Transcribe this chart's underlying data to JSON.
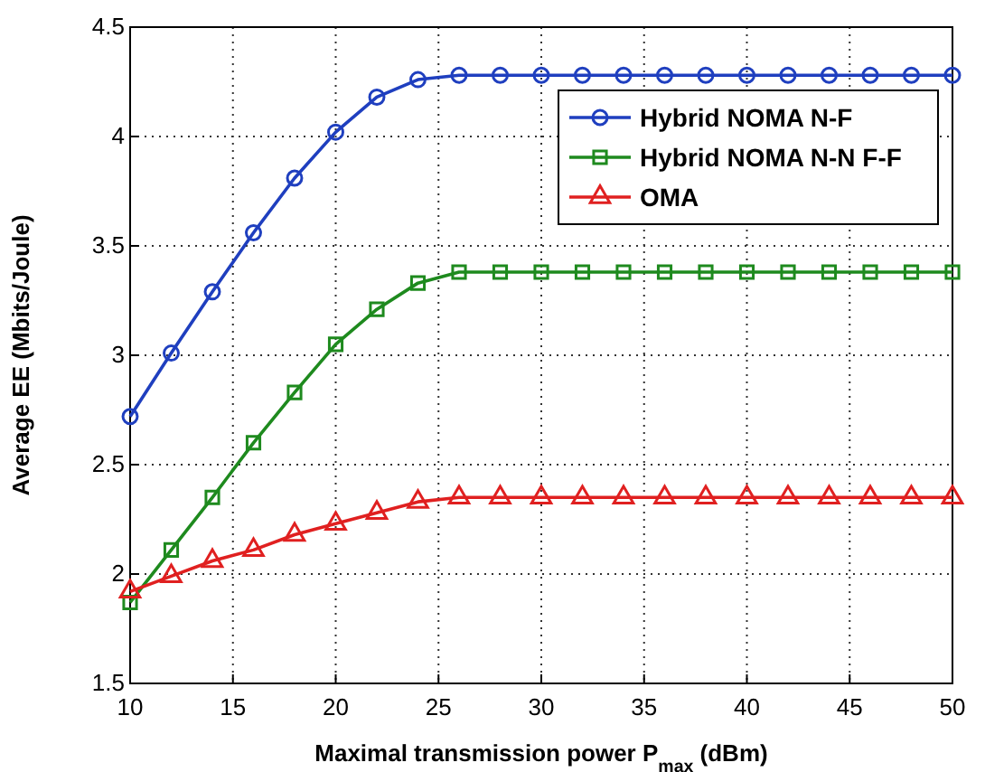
{
  "chart_data": {
    "type": "line",
    "xlabel": "Maximal transmission power P$_{max}$ (dBm)",
    "ylabel": "Average EE (Mbits/Joule)",
    "x": [
      10,
      12,
      14,
      16,
      18,
      20,
      22,
      24,
      26,
      28,
      30,
      32,
      34,
      36,
      38,
      40,
      42,
      44,
      46,
      48,
      50
    ],
    "series": [
      {
        "name": "Hybrid NOMA N-F",
        "color": "#1f3fbf",
        "marker": "circle",
        "values": [
          2.72,
          3.01,
          3.29,
          3.56,
          3.81,
          4.02,
          4.18,
          4.26,
          4.28,
          4.28,
          4.28,
          4.28,
          4.28,
          4.28,
          4.28,
          4.28,
          4.28,
          4.28,
          4.28,
          4.28,
          4.28
        ]
      },
      {
        "name": "Hybrid NOMA N-N F-F",
        "color": "#1e8a1e",
        "marker": "square",
        "values": [
          1.87,
          2.11,
          2.35,
          2.6,
          2.83,
          3.05,
          3.21,
          3.33,
          3.38,
          3.38,
          3.38,
          3.38,
          3.38,
          3.38,
          3.38,
          3.38,
          3.38,
          3.38,
          3.38,
          3.38,
          3.38
        ]
      },
      {
        "name": "OMA",
        "color": "#e02020",
        "marker": "triangle",
        "values": [
          1.92,
          1.99,
          2.06,
          2.11,
          2.18,
          2.23,
          2.28,
          2.33,
          2.35,
          2.35,
          2.35,
          2.35,
          2.35,
          2.35,
          2.35,
          2.35,
          2.35,
          2.35,
          2.35,
          2.35,
          2.35
        ]
      }
    ],
    "xlim": [
      10,
      50
    ],
    "xticks": [
      10,
      15,
      20,
      25,
      30,
      35,
      40,
      45,
      50
    ],
    "ylim": [
      1.5,
      4.5
    ],
    "yticks": [
      1.5,
      2,
      2.5,
      3,
      3.5,
      4,
      4.5
    ],
    "grid": true,
    "legend": "top right",
    "line_style": "solid"
  }
}
